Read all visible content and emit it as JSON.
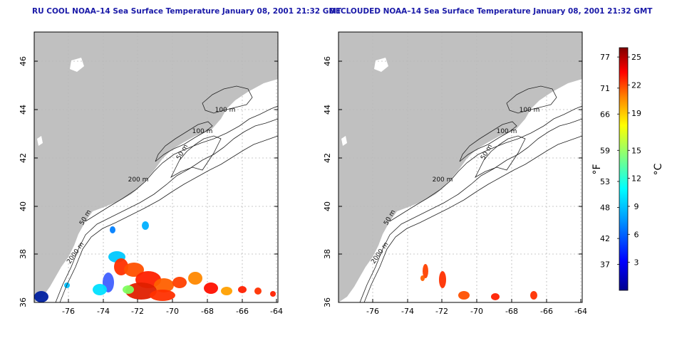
{
  "panels": [
    {
      "id": "left",
      "title": "RU COOL NOAA–14 Sea Surface Temperature January 08, 2001 21:32 GMT",
      "clouded": true
    },
    {
      "id": "right",
      "title": "DECLOUDED NOAA–14 Sea Surface Temperature January 08, 2001 21:32 GMT",
      "clouded": false
    }
  ],
  "x_ticks": [
    "-76",
    "-74",
    "-72",
    "-70",
    "-68",
    "-66",
    "-64"
  ],
  "y_ticks": [
    "36",
    "38",
    "40",
    "42",
    "44",
    "46"
  ],
  "contour_labels": [
    "100 m",
    "100 m",
    "50 m",
    "200 m",
    "50 m",
    "2000 m"
  ],
  "colorbar": {
    "f_label": "°F",
    "c_label": "°C",
    "f_ticks": [
      "77",
      "71",
      "66",
      "59",
      "53",
      "48",
      "42",
      "37"
    ],
    "c_ticks": [
      "25",
      "22",
      "19",
      "15",
      "12",
      "9",
      "6",
      "3"
    ]
  },
  "colors": {
    "title": "#1a1aa8",
    "land": "#c0c0c0",
    "ocean": "#ffffff",
    "contour": "#222222",
    "grid": "#b8b8b8"
  }
}
